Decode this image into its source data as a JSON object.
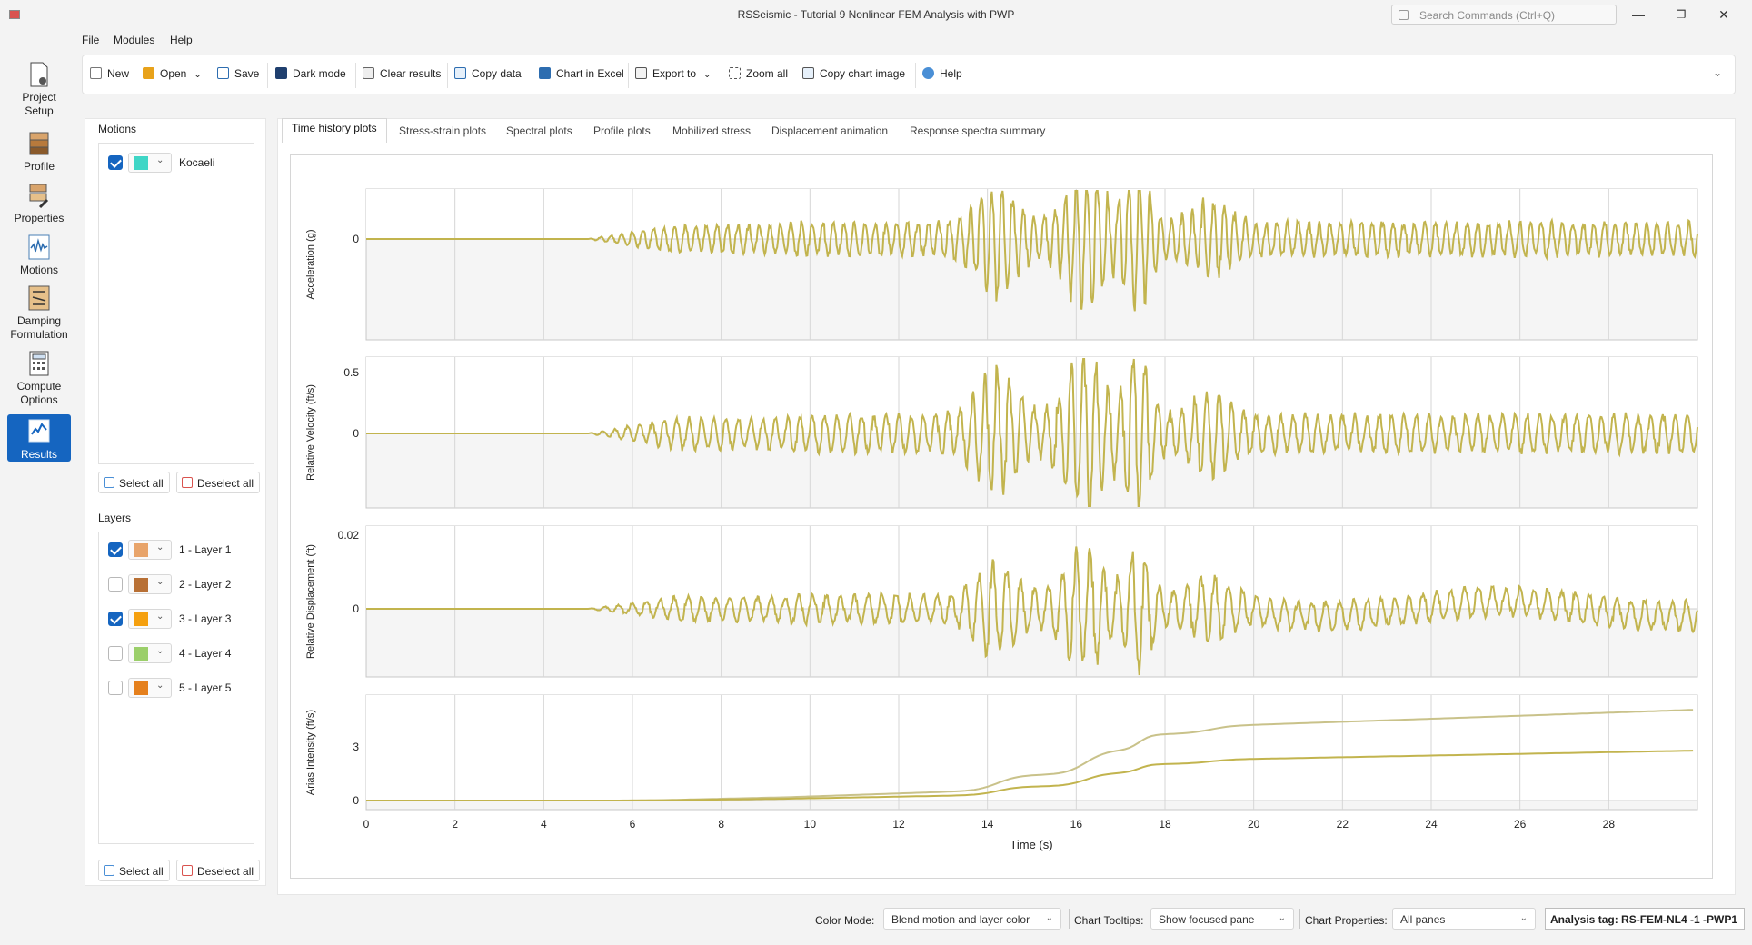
{
  "window": {
    "title": "RSSeismic - Tutorial 9 Nonlinear FEM Analysis with PWP",
    "search_placeholder": "Search Commands (Ctrl+Q)"
  },
  "menu": [
    "File",
    "Modules",
    "Help"
  ],
  "toolbar": {
    "new": "New",
    "open": "Open",
    "save": "Save",
    "dark_mode": "Dark mode",
    "clear_results": "Clear results",
    "copy_data": "Copy data",
    "chart_in_excel": "Chart in Excel",
    "export_to": "Export to",
    "zoom_all": "Zoom all",
    "copy_chart_image": "Copy chart image",
    "help": "Help"
  },
  "nav": [
    {
      "label": "Project Setup",
      "icon": "project-setup-icon"
    },
    {
      "label": "Profile",
      "icon": "profile-icon"
    },
    {
      "label": "Properties",
      "icon": "properties-icon"
    },
    {
      "label": "Motions",
      "icon": "motions-icon"
    },
    {
      "label": "Damping Formulation",
      "icon": "damping-icon"
    },
    {
      "label": "Compute Options",
      "icon": "compute-icon"
    },
    {
      "label": "Results",
      "icon": "results-icon"
    }
  ],
  "motions": {
    "title": "Motions",
    "items": [
      {
        "label": "Kocaeli",
        "checked": true,
        "color": "#3fd6c6"
      }
    ],
    "select_all": "Select all",
    "deselect_all": "Deselect all"
  },
  "layers": {
    "title": "Layers",
    "items": [
      {
        "label": "1 - Layer 1",
        "checked": true,
        "color": "#e8a46a"
      },
      {
        "label": "2 - Layer 2",
        "checked": false,
        "color": "#b87035"
      },
      {
        "label": "3 - Layer 3",
        "checked": true,
        "color": "#f5a00f"
      },
      {
        "label": "4 - Layer 4",
        "checked": false,
        "color": "#9bcf6a"
      },
      {
        "label": "5 - Layer 5",
        "checked": false,
        "color": "#e5801d"
      }
    ],
    "select_all": "Select all",
    "deselect_all": "Deselect all"
  },
  "tabs": [
    "Time history plots",
    "Stress-strain plots",
    "Spectral plots",
    "Profile plots",
    "Mobilized stress",
    "Displacement animation",
    "Response spectra summary"
  ],
  "chart_data": {
    "type": "line",
    "xlabel": "Time (s)",
    "xlim": [
      0,
      30
    ],
    "x_ticks": [
      "0",
      "2",
      "4",
      "6",
      "8",
      "10",
      "12",
      "14",
      "16",
      "18",
      "20",
      "22",
      "24",
      "26",
      "28"
    ],
    "series_color": "#c2b44e",
    "panes": [
      {
        "ylabel": "Acceleration (g)",
        "y_ticks": [
          "0"
        ]
      },
      {
        "ylabel": "Relative Velocity (ft/s)",
        "y_ticks": [
          "0.5",
          "0"
        ]
      },
      {
        "ylabel": "Relative Displacement (ft)",
        "y_ticks": [
          "0.02",
          "0"
        ]
      },
      {
        "ylabel": "Arias Intensity (ft/s)",
        "y_ticks": [
          "3",
          "0"
        ]
      }
    ]
  },
  "status": {
    "color_mode_label": "Color Mode:",
    "color_mode_value": "Blend motion and layer color",
    "tooltips_label": "Chart Tooltips:",
    "tooltips_value": "Show focused pane",
    "properties_label": "Chart Properties:",
    "properties_value": "All panes",
    "analysis_tag": "Analysis tag: RS-FEM-NL4 -1 -PWP1"
  }
}
